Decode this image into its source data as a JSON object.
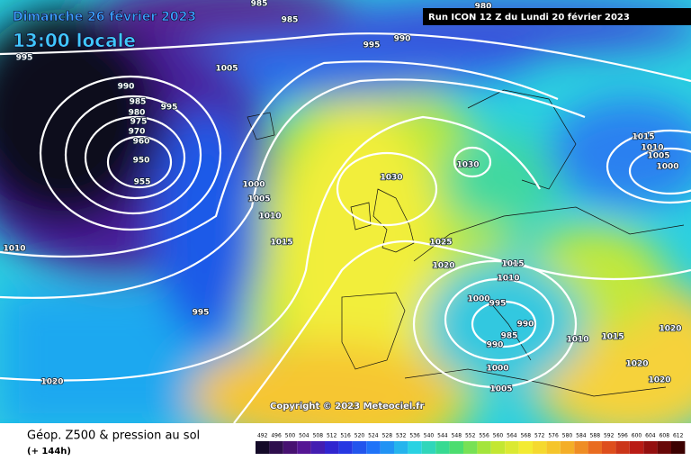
{
  "header": {
    "date": "Dimanche 26 février 2023",
    "time": "13:00 locale",
    "run": "Run ICON 12 Z du Lundi 20 février 2023"
  },
  "isobar_labels": [
    985,
    985,
    980,
    995,
    990,
    995,
    1005,
    990,
    985,
    995,
    980,
    975,
    970,
    960,
    950,
    955,
    1000,
    1005,
    1010,
    1015,
    1030,
    1030,
    1015,
    1010,
    1005,
    1000,
    1010,
    1025,
    1020,
    1015,
    1010,
    1000,
    995,
    990,
    985,
    990,
    1010,
    1015,
    995,
    1020,
    1000,
    1005,
    1020,
    1020,
    1020
  ],
  "copyright": "Copyright © 2023 Meteociel.fr",
  "legend": {
    "title": "Géop. Z500 & pression au sol",
    "lead": "(+ 144h)",
    "scale": [
      492,
      496,
      500,
      504,
      508,
      512,
      516,
      520,
      524,
      528,
      532,
      536,
      540,
      544,
      548,
      552,
      556,
      560,
      564,
      568,
      572,
      576,
      580,
      584,
      588,
      592,
      596,
      600,
      604,
      608,
      612
    ]
  }
}
